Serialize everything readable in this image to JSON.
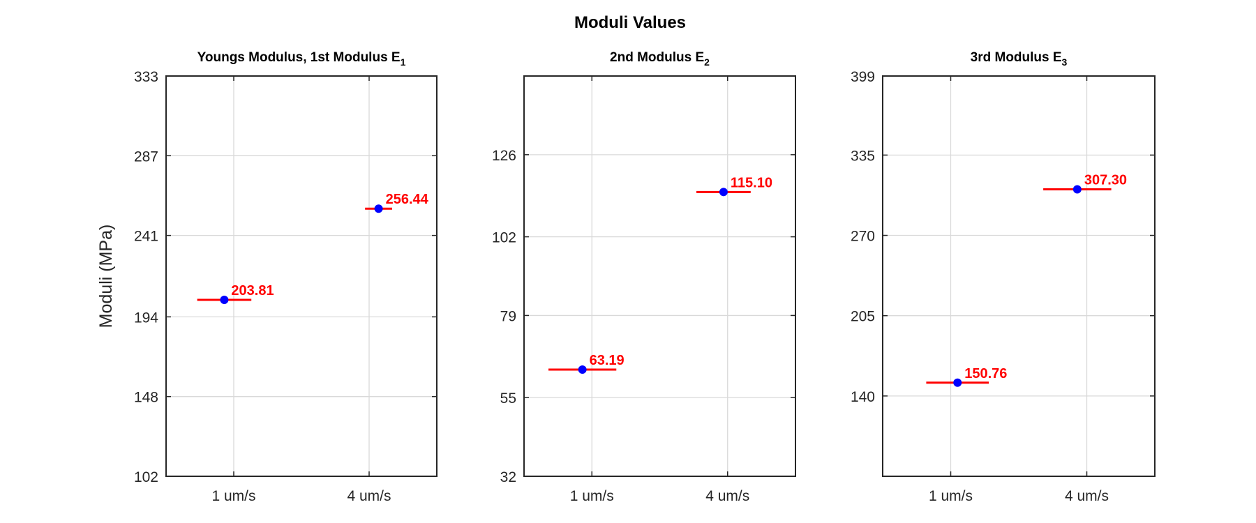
{
  "figure": {
    "title": "Moduli Values",
    "ylabel": "Moduli (MPa)"
  },
  "colors": {
    "marker": "#0000ff",
    "error_bar": "#ff0000",
    "data_label": "#ff0000",
    "grid": "#d9d9d9",
    "axes": "#262626"
  },
  "chart_data": [
    {
      "type": "scatter",
      "title": "Youngs Modulus, 1st Modulus E",
      "title_subscript": "1",
      "ylabel": "Moduli (MPa)",
      "categories": [
        "1 um/s",
        "4 um/s"
      ],
      "x": [
        0.93,
        2.07
      ],
      "values": [
        203.81,
        256.44
      ],
      "labels": [
        "203.81",
        "256.44"
      ],
      "error_half_width": [
        0.2,
        0.1
      ],
      "ylim": [
        102,
        333
      ],
      "yticks": [
        102,
        148,
        194,
        241,
        287,
        333
      ],
      "xlim": [
        0.5,
        2.5
      ],
      "grid": true
    },
    {
      "type": "scatter",
      "title": "2nd Modulus E",
      "title_subscript": "2",
      "ylabel": "",
      "categories": [
        "1 um/s",
        "4 um/s"
      ],
      "x": [
        0.93,
        1.97
      ],
      "values": [
        63.19,
        115.1
      ],
      "labels": [
        "63.19",
        "115.10"
      ],
      "error_half_width": [
        0.25,
        0.2
      ],
      "ylim": [
        32,
        149
      ],
      "yticks": [
        32,
        55,
        79,
        102,
        126
      ],
      "xlim": [
        0.5,
        2.5
      ],
      "grid": true
    },
    {
      "type": "scatter",
      "title": "3rd Modulus E",
      "title_subscript": "3",
      "ylabel": "",
      "categories": [
        "1 um/s",
        "4 um/s"
      ],
      "x": [
        1.05,
        1.93
      ],
      "values": [
        150.76,
        307.3
      ],
      "labels": [
        "150.76",
        "307.30"
      ],
      "error_half_width": [
        0.23,
        0.25
      ],
      "ylim": [
        75,
        399
      ],
      "yticks": [
        140,
        205,
        270,
        335,
        399
      ],
      "xlim": [
        0.5,
        2.5
      ],
      "grid": true
    }
  ]
}
